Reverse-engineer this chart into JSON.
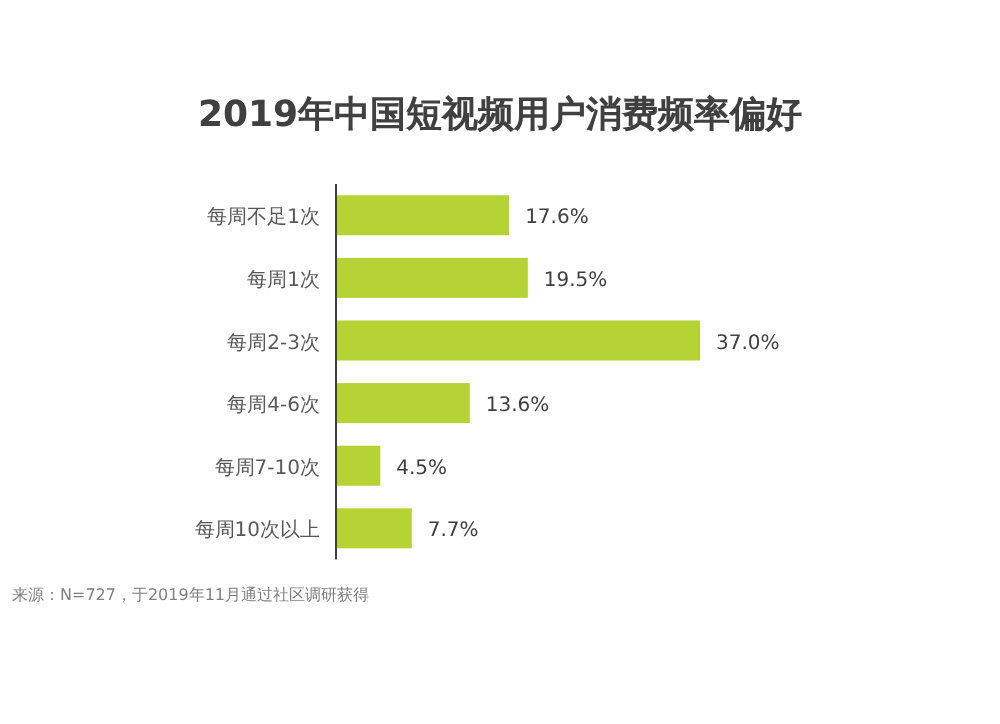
{
  "chart_data": {
    "type": "bar",
    "orientation": "horizontal",
    "title": "2019年中国短视频用户消费频率偏好",
    "categories": [
      "每周不足1次",
      "每周1次",
      "每周2-3次",
      "每周4-6次",
      "每周7-10次",
      "每周10次以上"
    ],
    "values": [
      17.6,
      19.5,
      37.0,
      13.6,
      4.5,
      7.7
    ],
    "value_labels": [
      "17.6%",
      "19.5%",
      "37.0%",
      "13.6%",
      "4.5%",
      "7.7%"
    ],
    "color": "#b5d334",
    "annotations": [
      "来源：N=727，于2019年11月通过社区调研获得"
    ]
  }
}
